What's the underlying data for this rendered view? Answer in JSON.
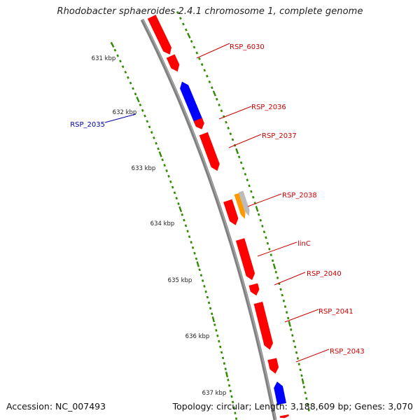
{
  "title": "Rhodobacter sphaeroides 2.4.1 chromosome 1, complete genome",
  "footer": {
    "accession": "Accession: NC_007493",
    "summary": "Topology: circular; Length: 3,188,609 bp; Genes: 3,070"
  },
  "colors": {
    "forward_gene": "#ff0000",
    "reverse_gene": "#0000ff",
    "orange_feature": "#ff9900",
    "grey_feature": "#bbbbbb",
    "backbone": "#808080",
    "tick": "#2e8b00",
    "label_forward": "#cc0000",
    "label_reverse": "#0000aa"
  },
  "scale_labels": [
    "631 kbp",
    "632 kbp",
    "633 kbp",
    "634 kbp",
    "635 kbp",
    "636 kbp",
    "637 kbp"
  ],
  "gene_labels": [
    {
      "name": "RSP_6030",
      "strand": "forward"
    },
    {
      "name": "RSP_2035",
      "strand": "reverse"
    },
    {
      "name": "RSP_2036",
      "strand": "forward"
    },
    {
      "name": "RSP_2037",
      "strand": "forward"
    },
    {
      "name": "RSP_2038",
      "strand": "forward"
    },
    {
      "name": "linC",
      "strand": "forward"
    },
    {
      "name": "RSP_2040",
      "strand": "forward"
    },
    {
      "name": "RSP_2041",
      "strand": "forward"
    },
    {
      "name": "RSP_2043",
      "strand": "forward"
    }
  ]
}
